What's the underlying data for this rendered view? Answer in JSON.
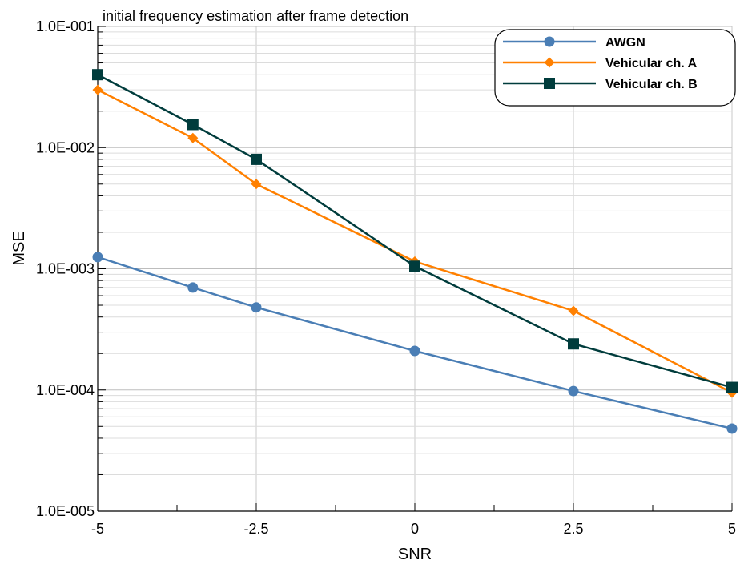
{
  "chart_data": {
    "type": "line",
    "title": "initial frequency estimation after frame detection",
    "xlabel": "SNR",
    "ylabel": "MSE",
    "x": [
      -5,
      -3.5,
      -2.5,
      0,
      2.5,
      5
    ],
    "xlim": [
      -5,
      5
    ],
    "ylim": [
      1e-05,
      0.1
    ],
    "yscale": "log",
    "x_ticks": [
      "-5",
      "-2.5",
      "0",
      "2.5",
      "5"
    ],
    "y_ticks": [
      "1.0E-005",
      "1.0E-004",
      "1.0E-003",
      "1.0E-002",
      "1.0E-001"
    ],
    "grid": true,
    "legend_position": "top-right",
    "series": [
      {
        "name": "AWGN",
        "color": "#4a7eb5",
        "marker": "circle",
        "values": [
          0.00125,
          0.0007,
          0.00048,
          0.00021,
          9.8e-05,
          4.8e-05
        ]
      },
      {
        "name": "Vehicular ch. A",
        "color": "#ff8000",
        "marker": "diamond",
        "values": [
          0.03,
          0.012,
          0.005,
          0.00115,
          0.00045,
          9.5e-05
        ]
      },
      {
        "name": "Vehicular ch. B",
        "color": "#003c3c",
        "marker": "square",
        "values": [
          0.04,
          0.0155,
          0.008,
          0.00105,
          0.00024,
          0.000105
        ]
      }
    ]
  }
}
